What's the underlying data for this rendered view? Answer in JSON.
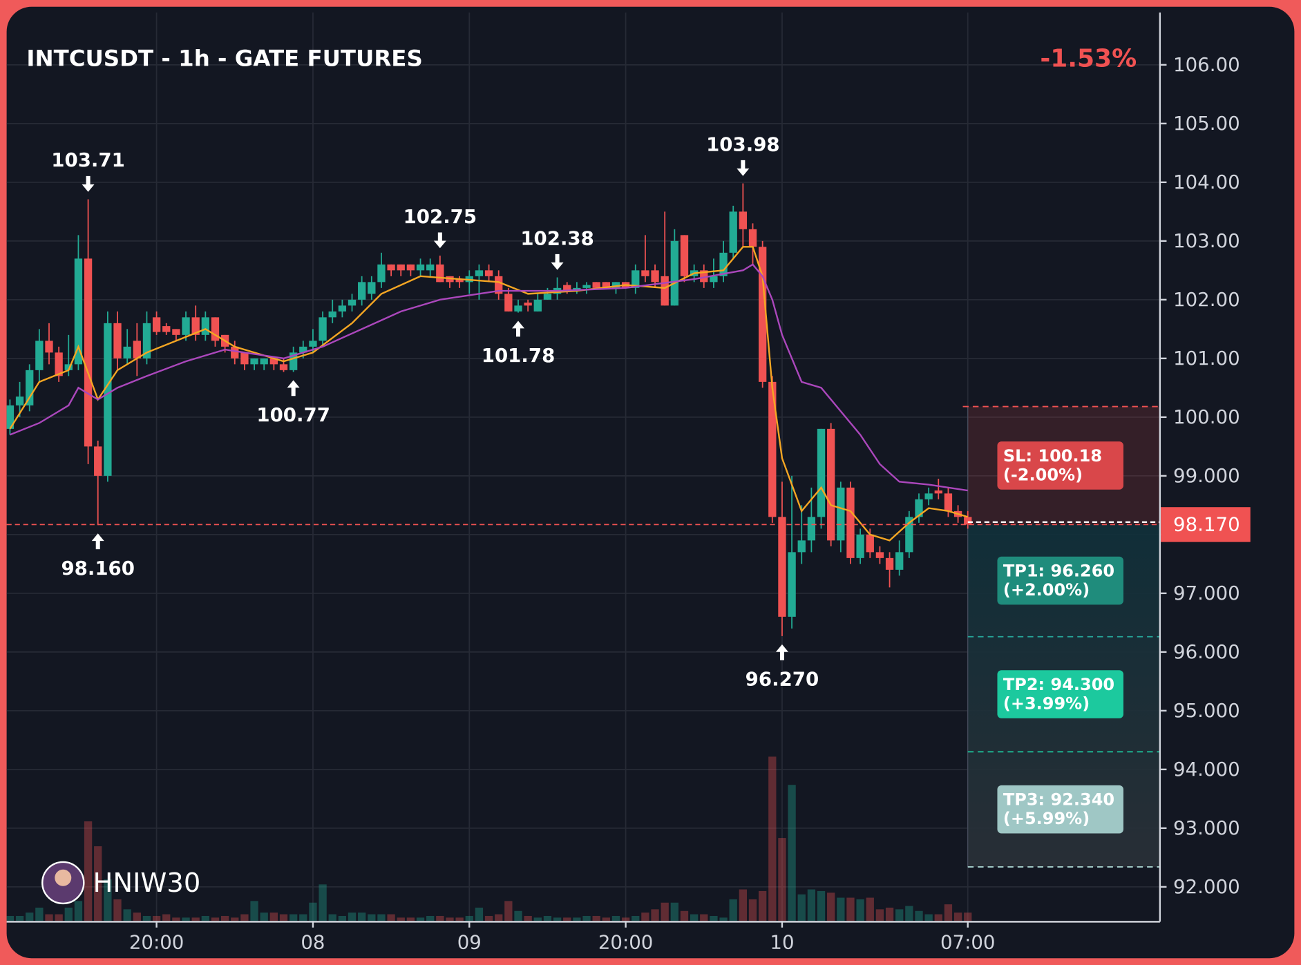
{
  "chart_data": {
    "type": "candlestick",
    "title": "INTCUSDT - 1h - GATE FUTURES",
    "change": "-1.53%",
    "watermark": "HNIW30",
    "xlim": [
      0,
      118
    ],
    "xticks": [
      {
        "value": 15,
        "label": "20:00"
      },
      {
        "value": 31,
        "label": "08"
      },
      {
        "value": 47,
        "label": "09"
      },
      {
        "value": 63,
        "label": "20:00"
      },
      {
        "value": 79,
        "label": "10"
      },
      {
        "value": 98,
        "label": "07:00"
      }
    ],
    "ylim": [
      91.42,
      106.89
    ],
    "yticks": [
      {
        "value": 106,
        "label": "106.00"
      },
      {
        "value": 105,
        "label": "105.00"
      },
      {
        "value": 104,
        "label": "104.00"
      },
      {
        "value": 103,
        "label": "103.00"
      },
      {
        "value": 102,
        "label": "102.00"
      },
      {
        "value": 101,
        "label": "101.00"
      },
      {
        "value": 100,
        "label": "100.00"
      },
      {
        "value": 99,
        "label": "99.000"
      },
      {
        "value": 98,
        "label": "98.000"
      },
      {
        "value": 97,
        "label": "97.000"
      },
      {
        "value": 96,
        "label": "96.000"
      },
      {
        "value": 95,
        "label": "95.000"
      },
      {
        "value": 94,
        "label": "94.000"
      },
      {
        "value": 93,
        "label": "93.000"
      },
      {
        "value": 92,
        "label": "92.000"
      }
    ],
    "grid": true,
    "up_color": "#22ab94",
    "down_color": "#f05252",
    "open": [
      99.8,
      100.2,
      100.2,
      100.8,
      101.3,
      101.1,
      100.8,
      100.9,
      102.7,
      99.5,
      99.0,
      101.6,
      101.0,
      101.3,
      101.0,
      101.7,
      101.55,
      101.5,
      101.4,
      101.7,
      101.4,
      101.7,
      101.4,
      101.2,
      101.1,
      100.9,
      100.9,
      101.0,
      100.9,
      100.8,
      101.1,
      101.2,
      101.3,
      101.7,
      101.8,
      101.9,
      102.0,
      102.1,
      102.3,
      102.6,
      102.6,
      102.6,
      102.5,
      102.5,
      102.6,
      102.4,
      102.35,
      102.3,
      102.4,
      102.5,
      102.4,
      102.1,
      101.8,
      101.95,
      101.8,
      102.0,
      102.1,
      102.25,
      102.15,
      102.2,
      102.3,
      102.3,
      102.2,
      102.3,
      102.2,
      102.5,
      102.5,
      102.4,
      101.9,
      103.1,
      102.4,
      102.5,
      102.3,
      102.4,
      102.8,
      103.5,
      103.2,
      102.9,
      100.6,
      98.3,
      96.6,
      97.7,
      97.9,
      98.3,
      99.8,
      97.9,
      98.8,
      97.6,
      98.0,
      97.7,
      97.6,
      97.4,
      97.7,
      98.3,
      98.6,
      98.75,
      98.7,
      98.4,
      98.3
    ],
    "high": [
      100.3,
      100.6,
      100.9,
      101.5,
      101.6,
      101.2,
      101.4,
      103.1,
      103.71,
      99.6,
      101.8,
      101.8,
      101.5,
      101.6,
      101.8,
      101.8,
      101.6,
      101.5,
      101.8,
      101.9,
      101.8,
      101.7,
      101.4,
      101.3,
      101.1,
      101.0,
      101.0,
      101.0,
      101.0,
      101.2,
      101.3,
      101.5,
      101.8,
      102.0,
      102.0,
      102.1,
      102.4,
      102.4,
      102.8,
      102.6,
      102.6,
      102.6,
      102.7,
      102.7,
      102.75,
      102.4,
      102.4,
      102.5,
      102.6,
      102.6,
      102.5,
      102.2,
      102.0,
      102.0,
      102.1,
      102.2,
      102.38,
      102.3,
      102.3,
      102.3,
      102.3,
      102.3,
      102.3,
      102.3,
      102.6,
      103.1,
      102.6,
      103.5,
      103.2,
      103.1,
      102.6,
      102.6,
      102.7,
      103.0,
      103.6,
      103.98,
      103.3,
      103.0,
      100.7,
      98.9,
      99.0,
      98.5,
      98.8,
      99.8,
      99.9,
      98.9,
      98.9,
      98.1,
      98.1,
      97.8,
      97.7,
      97.9,
      98.4,
      98.7,
      98.8,
      98.95,
      98.8,
      98.5,
      98.4
    ],
    "low": [
      99.7,
      100.0,
      100.1,
      100.6,
      100.9,
      100.6,
      100.7,
      100.8,
      99.2,
      98.16,
      98.9,
      100.8,
      100.9,
      100.7,
      100.9,
      101.4,
      101.4,
      101.3,
      101.3,
      101.3,
      101.3,
      101.2,
      101.1,
      100.9,
      100.8,
      100.8,
      100.8,
      100.8,
      100.77,
      100.77,
      101.0,
      101.1,
      101.2,
      101.6,
      101.7,
      101.8,
      101.9,
      102.0,
      102.2,
      102.4,
      102.4,
      102.4,
      102.4,
      102.4,
      102.3,
      102.2,
      102.2,
      102.1,
      102.0,
      102.3,
      102.0,
      101.8,
      101.78,
      101.8,
      101.8,
      102.0,
      102.0,
      102.1,
      102.1,
      102.1,
      102.2,
      102.2,
      102.1,
      102.2,
      102.1,
      102.3,
      102.2,
      101.9,
      101.9,
      102.3,
      102.3,
      102.2,
      102.2,
      102.3,
      102.7,
      102.9,
      102.6,
      100.5,
      98.2,
      96.27,
      96.4,
      97.5,
      97.7,
      98.1,
      97.8,
      97.7,
      97.5,
      97.5,
      97.6,
      97.5,
      97.1,
      97.3,
      97.6,
      98.2,
      98.5,
      98.6,
      98.3,
      98.2,
      98.1
    ],
    "close": [
      100.2,
      100.35,
      100.8,
      101.3,
      101.1,
      100.7,
      100.9,
      102.7,
      99.5,
      99.0,
      101.6,
      101.0,
      101.2,
      101.0,
      101.6,
      101.45,
      101.45,
      101.4,
      101.7,
      101.4,
      101.7,
      101.3,
      101.2,
      101.0,
      100.9,
      101.0,
      101.0,
      100.9,
      100.8,
      101.1,
      101.2,
      101.3,
      101.7,
      101.8,
      101.9,
      102.0,
      102.3,
      102.3,
      102.6,
      102.5,
      102.5,
      102.5,
      102.6,
      102.6,
      102.3,
      102.3,
      102.3,
      102.4,
      102.5,
      102.4,
      102.1,
      101.8,
      101.9,
      101.9,
      102.0,
      102.1,
      102.2,
      102.15,
      102.2,
      102.25,
      102.2,
      102.2,
      102.3,
      102.2,
      102.5,
      102.4,
      102.3,
      101.9,
      103.0,
      102.4,
      102.5,
      102.3,
      102.4,
      102.8,
      103.5,
      103.2,
      102.9,
      100.6,
      98.3,
      96.6,
      97.7,
      97.9,
      98.3,
      99.8,
      97.9,
      98.8,
      97.6,
      98.0,
      97.7,
      97.6,
      97.4,
      97.7,
      98.3,
      98.6,
      98.7,
      98.7,
      98.4,
      98.3,
      98.17
    ],
    "vlim": [
      0,
      100
    ],
    "volume": [
      3,
      3,
      5,
      8,
      4,
      4,
      8,
      12,
      60,
      45,
      25,
      13,
      7,
      5,
      3,
      3,
      4,
      2,
      2,
      2,
      3,
      2,
      3,
      2,
      4,
      12,
      5,
      5,
      4,
      4,
      4,
      11,
      22,
      4,
      3,
      5,
      5,
      4,
      4,
      4,
      2,
      2,
      2,
      3,
      3,
      2,
      2,
      3,
      8,
      3,
      4,
      12,
      6,
      3,
      2,
      3,
      2,
      2,
      2,
      3,
      3,
      2,
      3,
      2,
      3,
      5,
      7,
      11,
      11,
      6,
      4,
      4,
      3,
      2,
      13,
      19,
      13,
      18,
      99,
      50,
      82,
      16,
      19,
      18,
      17,
      14,
      14,
      13,
      14,
      7,
      8,
      7,
      9,
      6,
      4,
      4,
      10,
      5,
      5
    ],
    "lines": [
      {
        "color": "#f5a623",
        "x": [
          0,
          3,
          6,
          7,
          9,
          11,
          14,
          17,
          20,
          23,
          28,
          31,
          35,
          38,
          42,
          46,
          50,
          53,
          58,
          63,
          67,
          70,
          73,
          75,
          76,
          77,
          78,
          79,
          81,
          83,
          84,
          86,
          88,
          90,
          92,
          94,
          96,
          98
        ],
        "values": [
          99.8,
          100.6,
          100.8,
          101.2,
          100.3,
          100.8,
          101.1,
          101.3,
          101.5,
          101.2,
          100.95,
          101.1,
          101.6,
          102.1,
          102.4,
          102.35,
          102.3,
          102.1,
          102.15,
          102.25,
          102.2,
          102.45,
          102.5,
          102.9,
          102.9,
          102.4,
          100.5,
          99.3,
          98.4,
          98.8,
          98.5,
          98.4,
          98.0,
          97.9,
          98.2,
          98.45,
          98.4,
          98.3
        ]
      },
      {
        "color": "#ab47bc",
        "x": [
          0,
          3,
          6,
          7,
          9,
          11,
          14,
          18,
          22,
          28,
          32,
          36,
          40,
          44,
          50,
          56,
          63,
          70,
          75,
          76,
          77,
          78,
          79,
          81,
          83,
          85,
          87,
          89,
          91,
          94,
          98
        ],
        "values": [
          99.7,
          99.9,
          100.2,
          100.5,
          100.3,
          100.5,
          100.7,
          100.95,
          101.15,
          101.0,
          101.2,
          101.5,
          101.8,
          102.0,
          102.15,
          102.15,
          102.2,
          102.35,
          102.5,
          102.6,
          102.4,
          102.0,
          101.4,
          100.6,
          100.5,
          100.1,
          99.7,
          99.2,
          98.9,
          98.85,
          98.75
        ]
      }
    ],
    "annotations": [
      {
        "index": 8,
        "value": 103.71,
        "dir": "down"
      },
      {
        "index": 9,
        "value": 98.16,
        "label": "98.160",
        "dir": "up"
      },
      {
        "index": 29,
        "value": 100.77,
        "dir": "up"
      },
      {
        "index": 44,
        "value": 102.75,
        "dir": "down"
      },
      {
        "index": 52,
        "value": 101.78,
        "dir": "up"
      },
      {
        "index": 56,
        "value": 102.38,
        "dir": "down"
      },
      {
        "index": 75,
        "value": 103.98,
        "dir": "down"
      },
      {
        "index": 79,
        "value": 96.27,
        "label": "96.270",
        "dir": "up"
      }
    ],
    "entry": {
      "index": 98,
      "value": 98.17,
      "label": "98.170"
    },
    "levels": [
      {
        "label": "SL: 100.18",
        "pct": "(-2.00%)",
        "value": 100.18,
        "color": "#d9474a",
        "line": "#f05252"
      },
      {
        "label": "TP1: 96.260",
        "pct": "(+2.00%)",
        "value": 96.26,
        "color": "#1f8c7c",
        "line": "#26a69a"
      },
      {
        "label": "TP2: 94.300",
        "pct": "(+3.99%)",
        "value": 94.3,
        "color": "#1cc99e",
        "line": "#1cc99e"
      },
      {
        "label": "TP3: 92.340",
        "pct": "(+5.99%)",
        "value": 92.34,
        "color": "#9fc7c5",
        "line": "#b2dfdb"
      }
    ]
  }
}
